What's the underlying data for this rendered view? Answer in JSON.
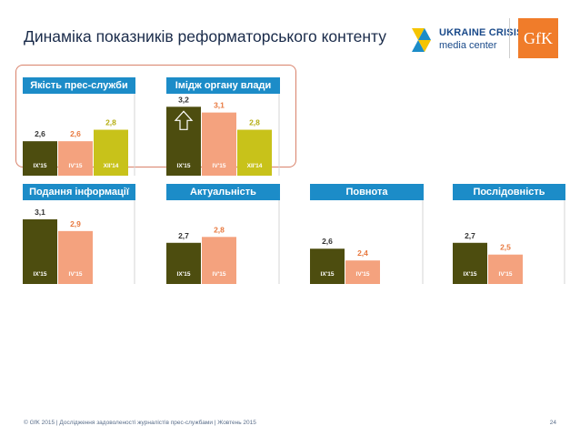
{
  "title": "Динаміка показників реформаторського контенту",
  "logos": {
    "ucmc_line1": "UKRAINE CRISIS",
    "ucmc_line2": "media center",
    "gfk": "GfK"
  },
  "footer": "© GfK 2015 | Дослідження задоволеності журналістів прес-службами | Жовтень 2015",
  "page_number": "24",
  "colors": {
    "header_blue": "#1c8cc8",
    "ix15": "#4d4d0f",
    "iv15": "#f4a27e",
    "xii14": "#c8c21a",
    "label_ix15": "#333333",
    "label_iv15": "#e8793f",
    "label_xii14": "#b5ae12",
    "highlight_border": "#d9826a"
  },
  "chart_data": [
    {
      "type": "bar",
      "title": "Якість прес-служби",
      "categories": [
        "IX'15",
        "IV'15",
        "XII'14"
      ],
      "values": [
        2.6,
        2.6,
        2.8
      ],
      "value_labels": [
        "2,6",
        "2,6",
        "2,8"
      ],
      "highlighted": true,
      "icon": null
    },
    {
      "type": "bar",
      "title": "Імідж органу влади",
      "categories": [
        "IX'15",
        "IV'15",
        "XII'14"
      ],
      "values": [
        3.2,
        3.1,
        2.8
      ],
      "value_labels": [
        "3,2",
        "3,1",
        "2,8"
      ],
      "highlighted": true,
      "icon": "up-arrow-icon"
    },
    {
      "type": "bar",
      "title": "Подання інформації",
      "categories": [
        "IX'15",
        "IV'15"
      ],
      "values": [
        3.1,
        2.9
      ],
      "value_labels": [
        "3,1",
        "2,9"
      ],
      "highlighted": false,
      "icon": null
    },
    {
      "type": "bar",
      "title": "Актуальність",
      "categories": [
        "IX'15",
        "IV'15"
      ],
      "values": [
        2.7,
        2.8
      ],
      "value_labels": [
        "2,7",
        "2,8"
      ],
      "highlighted": false,
      "icon": null
    },
    {
      "type": "bar",
      "title": "Повнота",
      "categories": [
        "IX'15",
        "IV'15"
      ],
      "values": [
        2.6,
        2.4
      ],
      "value_labels": [
        "2,6",
        "2,4"
      ],
      "highlighted": false,
      "icon": null
    },
    {
      "type": "bar",
      "title": "Послідовність",
      "categories": [
        "IX'15",
        "IV'15"
      ],
      "values": [
        2.7,
        2.5
      ],
      "value_labels": [
        "2,7",
        "2,5"
      ],
      "highlighted": false,
      "icon": null
    }
  ]
}
